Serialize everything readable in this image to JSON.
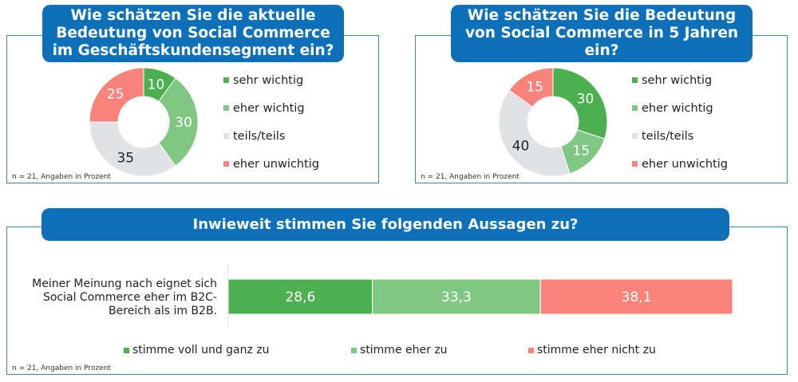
{
  "colors": {
    "header_blue": "#0e70b8",
    "frame_blue": "#3a87c0",
    "sehr_wichtig": "#4caf50",
    "eher_wichtig": "#81c784",
    "teils_teils": "#e0e2e5",
    "eher_unwichtig": "#f7837a"
  },
  "footnote": "n = 21, Angaben in Prozent",
  "chart_data": [
    {
      "type": "pie",
      "variant": "donut",
      "title": "Wie schätzen Sie die aktuelle Bedeutung von Social Commerce im Geschäftskundensegment ein?",
      "title_lines": [
        "Wie schätzen Sie die aktuelle",
        "Bedeutung von Social Commerce",
        "im Geschäftskundensegment ein?"
      ],
      "categories": [
        "sehr wichtig",
        "eher wichtig",
        "teils/teils",
        "eher unwichtig"
      ],
      "values": [
        10,
        30,
        35,
        25
      ],
      "labels": [
        "10",
        "30",
        "35",
        "25"
      ],
      "unit": "Prozent",
      "legend": "right",
      "footnote": "n = 21, Angaben in Prozent"
    },
    {
      "type": "pie",
      "variant": "donut",
      "title": "Wie schätzen Sie die Bedeutung von Social Commerce in 5 Jahren ein?",
      "title_lines": [
        "Wie schätzen Sie die Bedeutung",
        "von Social Commerce in 5 Jahren",
        "ein?"
      ],
      "categories": [
        "sehr wichtig",
        "eher wichtig",
        "teils/teils",
        "eher unwichtig"
      ],
      "values": [
        30,
        15,
        40,
        15
      ],
      "labels": [
        "30",
        "15",
        "40",
        "15"
      ],
      "unit": "Prozent",
      "legend": "right",
      "footnote": "n = 21, Angaben in Prozent"
    },
    {
      "type": "bar",
      "variant": "stacked-horizontal-100",
      "title": "Inwieweit stimmen Sie folgenden Aussagen zu?",
      "categories": [
        "Meiner Meinung nach eignet sich Social Commerce eher im B2C-Bereich als im B2B."
      ],
      "category_lines": [
        "Meiner Meinung nach eignet sich",
        "Social Commerce eher im B2C-",
        "Bereich als im B2B."
      ],
      "series": [
        {
          "name": "stimme voll und ganz zu",
          "values": [
            28.6
          ],
          "label": "28,6"
        },
        {
          "name": "stimme eher zu",
          "values": [
            33.3
          ],
          "label": "33,3"
        },
        {
          "name": "stimme eher nicht zu",
          "values": [
            38.1
          ],
          "label": "38,1"
        }
      ],
      "unit": "Prozent",
      "xlim": [
        0,
        100
      ],
      "legend": "bottom",
      "footnote": "n = 21, Angaben in Prozent"
    }
  ]
}
